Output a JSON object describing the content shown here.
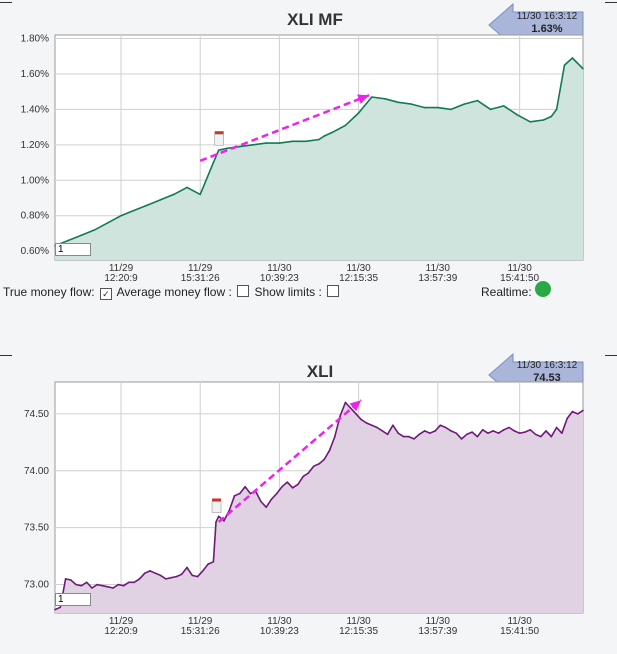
{
  "charts": [
    {
      "title": "XLI MF",
      "badge_time": "11/30 16:3:12",
      "badge_value": "1.63%",
      "input_value": "1",
      "fill": "#cfe4dd",
      "stroke": "#127a56",
      "ylabels": [
        "1.80%",
        "1.60%",
        "1.40%",
        "1.20%",
        "1.00%",
        "0.80%",
        "0.60%"
      ],
      "xlabels": [
        [
          "11/29",
          "12:20:9"
        ],
        [
          "11/29",
          "15:31:26"
        ],
        [
          "11/30",
          "10:39:23"
        ],
        [
          "11/30",
          "12:15:35"
        ],
        [
          "11/30",
          "13:57:39"
        ],
        [
          "11/30",
          "15:41:50"
        ]
      ]
    },
    {
      "title": "XLI",
      "badge_time": "11/30 16:3:12",
      "badge_value": "74.53",
      "input_value": "1",
      "fill": "#e0d2e3",
      "stroke": "#6e1b78",
      "ylabels": [
        "74.50",
        "74.00",
        "73.50",
        "73.00"
      ],
      "xlabels": [
        [
          "11/29",
          "12:20:9"
        ],
        [
          "11/29",
          "15:31:26"
        ],
        [
          "11/30",
          "10:39:23"
        ],
        [
          "11/30",
          "12:15:35"
        ],
        [
          "11/30",
          "13:57:39"
        ],
        [
          "11/30",
          "15:41:50"
        ]
      ]
    }
  ],
  "controls": {
    "true_mf_label": "True money flow:",
    "true_mf_checked": "✓",
    "avg_mf_label": "Average money flow :",
    "show_limits_label": "Show limits :",
    "realtime_label": "Realtime:"
  },
  "chart_data": [
    {
      "type": "area",
      "title": "XLI MF",
      "ylim": [
        0.55,
        1.82
      ],
      "yticks": [
        0.6,
        0.8,
        1.0,
        1.2,
        1.4,
        1.6,
        1.8
      ],
      "x_tick_labels": [
        "11/29 12:20:9",
        "11/29 15:31:26",
        "11/30 10:39:23",
        "11/30 12:15:35",
        "11/30 13:57:39",
        "11/30 15:41:50"
      ],
      "x_index": [
        0,
        5,
        10,
        15,
        20,
        25,
        30,
        35,
        40,
        45,
        50,
        55,
        60,
        62,
        65,
        70,
        75,
        80,
        85,
        90,
        95,
        100,
        102,
        105,
        110,
        115,
        120,
        125,
        130,
        135,
        140,
        145,
        150,
        155,
        160,
        165,
        170,
        175,
        180,
        185,
        188,
        190,
        193,
        196,
        200
      ],
      "x_tick_index": [
        25,
        55,
        85,
        115,
        145,
        176
      ],
      "series": [
        {
          "values": [
            0.63,
            0.66,
            0.69,
            0.72,
            0.76,
            0.8,
            0.83,
            0.86,
            0.89,
            0.92,
            0.96,
            0.92,
            1.1,
            1.17,
            1.18,
            1.19,
            1.2,
            1.21,
            1.21,
            1.22,
            1.22,
            1.23,
            1.25,
            1.27,
            1.31,
            1.38,
            1.47,
            1.46,
            1.44,
            1.43,
            1.41,
            1.41,
            1.4,
            1.43,
            1.45,
            1.4,
            1.42,
            1.37,
            1.33,
            1.34,
            1.36,
            1.4,
            1.65,
            1.69,
            1.63
          ]
        }
      ],
      "annotations": [
        {
          "type": "arrow",
          "from": [
            55,
            1.11
          ],
          "to": [
            119,
            1.48
          ]
        }
      ],
      "gap_marker": {
        "x": 62,
        "value": 1.26
      }
    },
    {
      "type": "area",
      "title": "XLI",
      "ylim": [
        72.75,
        74.78
      ],
      "yticks": [
        73.0,
        73.5,
        74.0,
        74.5
      ],
      "x_tick_labels": [
        "11/29 12:20:9",
        "11/29 15:31:26",
        "11/30 10:39:23",
        "11/30 12:15:35",
        "11/30 13:57:39",
        "11/30 15:41:50"
      ],
      "x_index": [
        0,
        2,
        4,
        6,
        8,
        10,
        12,
        14,
        16,
        18,
        20,
        22,
        24,
        26,
        28,
        30,
        32,
        34,
        36,
        38,
        40,
        42,
        44,
        46,
        48,
        50,
        52,
        54,
        56,
        58,
        60,
        61,
        62,
        64,
        66,
        68,
        70,
        72,
        74,
        76,
        78,
        80,
        82,
        84,
        86,
        88,
        90,
        92,
        94,
        96,
        98,
        100,
        102,
        104,
        106,
        108,
        110,
        112,
        114,
        116,
        118,
        120,
        122,
        124,
        126,
        128,
        130,
        132,
        134,
        136,
        138,
        140,
        142,
        144,
        146,
        148,
        150,
        152,
        154,
        156,
        158,
        160,
        162,
        164,
        166,
        168,
        170,
        172,
        174,
        176,
        178,
        180,
        182,
        184,
        186,
        188,
        190,
        192,
        194,
        196,
        198,
        200
      ],
      "x_tick_index": [
        25,
        55,
        85,
        115,
        145,
        176
      ],
      "series": [
        {
          "values": [
            72.78,
            72.8,
            73.05,
            73.04,
            73.0,
            72.99,
            73.02,
            72.97,
            73.0,
            72.99,
            72.98,
            72.97,
            73.0,
            72.99,
            73.02,
            73.02,
            73.05,
            73.1,
            73.12,
            73.1,
            73.08,
            73.05,
            73.06,
            73.07,
            73.09,
            73.15,
            73.08,
            73.07,
            73.12,
            73.18,
            73.2,
            73.55,
            73.6,
            73.56,
            73.65,
            73.78,
            73.8,
            73.86,
            73.8,
            73.82,
            73.73,
            73.68,
            73.75,
            73.8,
            73.86,
            73.9,
            73.85,
            73.88,
            73.95,
            73.98,
            74.04,
            74.06,
            74.1,
            74.18,
            74.3,
            74.48,
            74.6,
            74.55,
            74.5,
            74.45,
            74.42,
            74.4,
            74.38,
            74.35,
            74.32,
            74.4,
            74.33,
            74.3,
            74.3,
            74.28,
            74.32,
            74.35,
            74.33,
            74.35,
            74.4,
            74.38,
            74.35,
            74.33,
            74.28,
            74.32,
            74.34,
            74.3,
            74.36,
            74.33,
            74.35,
            74.33,
            74.36,
            74.38,
            74.35,
            74.33,
            74.34,
            74.36,
            74.32,
            74.3,
            74.35,
            74.3,
            74.38,
            74.33,
            74.46,
            74.52,
            74.5,
            74.53
          ]
        }
      ],
      "annotations": [
        {
          "type": "arrow",
          "from": [
            62,
            73.55
          ],
          "to": [
            116,
            74.62
          ]
        }
      ],
      "gap_marker": {
        "x": 61,
        "value": 73.73
      }
    }
  ]
}
